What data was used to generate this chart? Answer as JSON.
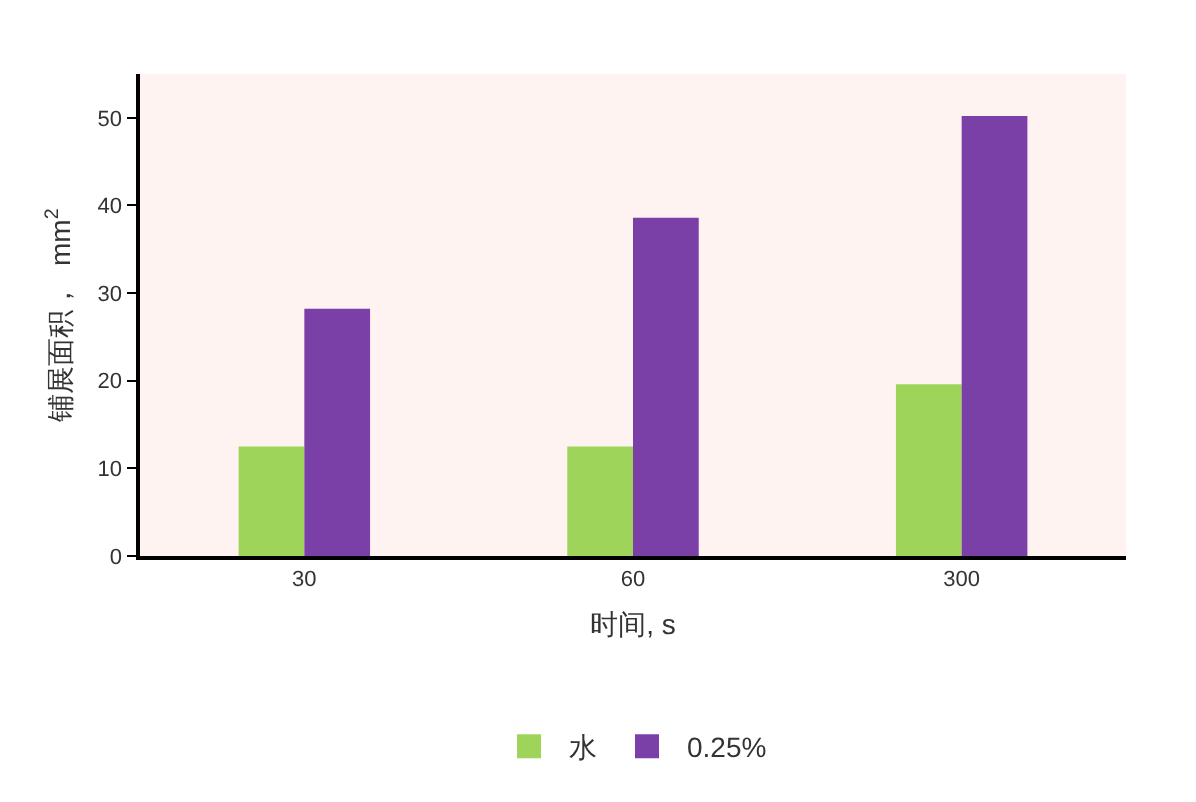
{
  "chart_data": {
    "type": "bar",
    "xlabel": "时间, s",
    "ylabel": "铺展面积，  mm$^{2}$",
    "categories": [
      "30",
      "60",
      "300"
    ],
    "series": [
      {
        "name": "水",
        "color": "#9ed45a",
        "values": [
          12.5,
          12.5,
          19.6
        ]
      },
      {
        "name": "0.25%",
        "color": "#7b3fa8",
        "values": [
          28.2,
          38.6,
          50.2
        ]
      }
    ],
    "ylim": [
      0,
      55
    ],
    "yticks": [
      0,
      10,
      20,
      30,
      40,
      50
    ],
    "grid": false,
    "legend": "bottom"
  }
}
